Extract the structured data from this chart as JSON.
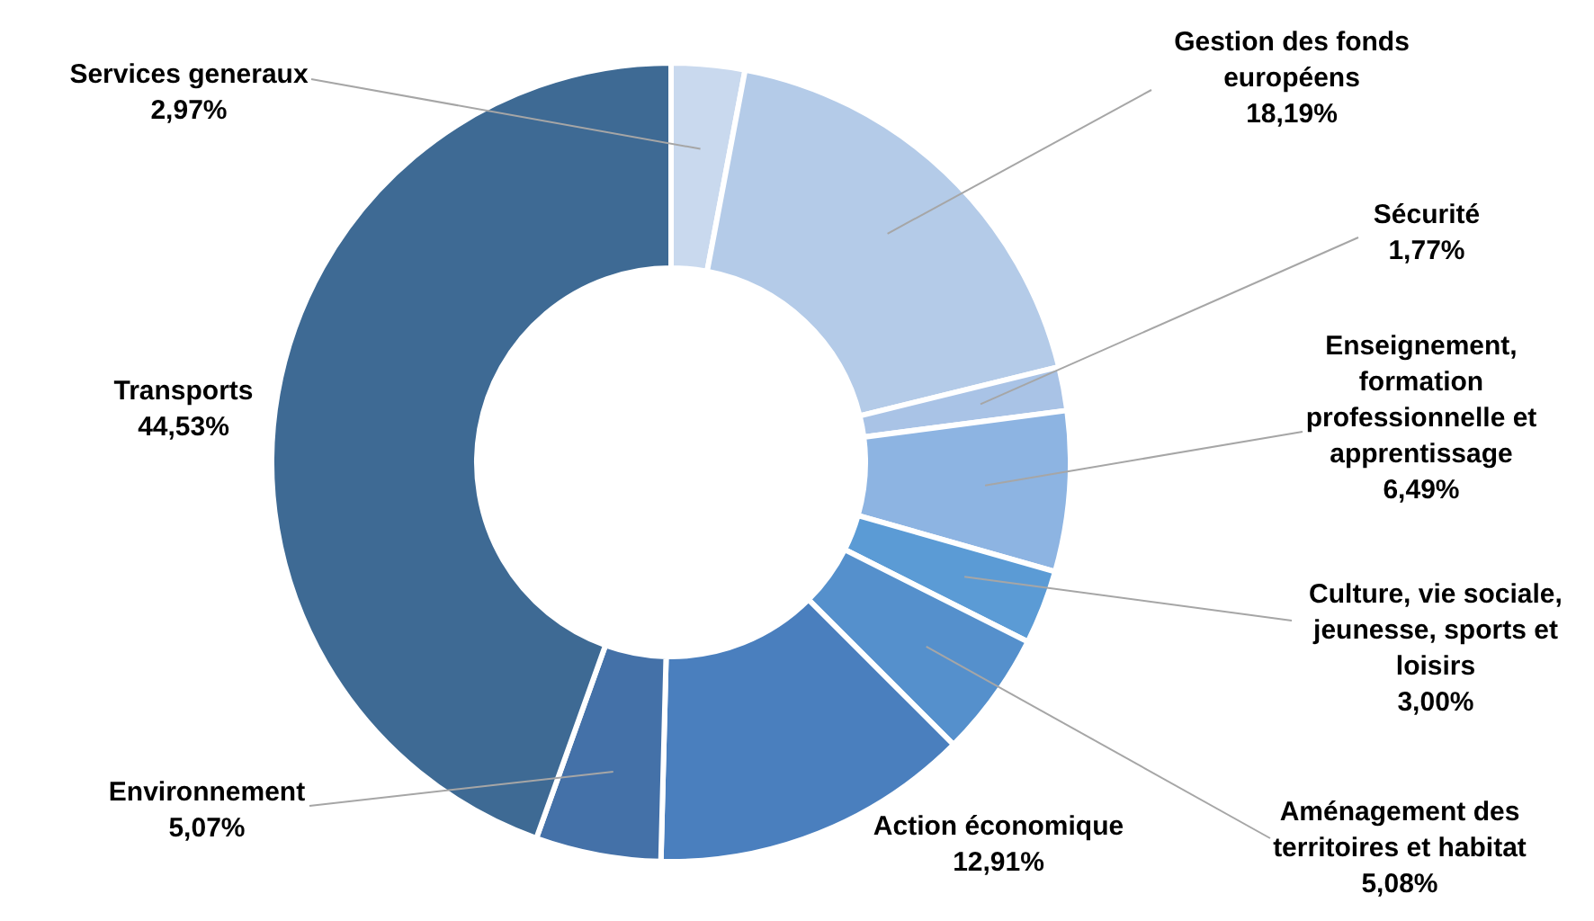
{
  "chart_data": {
    "type": "donut",
    "categories": [
      "Services generaux",
      "Gestion des fonds européens",
      "Sécurité",
      "Enseignement, formation professionnelle et apprentissage",
      "Culture, vie sociale, jeunesse, sports et loisirs",
      "Aménagement des territoires et habitat",
      "Action économique",
      "Environnement",
      "Transports"
    ],
    "values": [
      2.97,
      18.19,
      1.77,
      6.49,
      3.0,
      5.08,
      12.91,
      5.07,
      44.53
    ],
    "value_labels": [
      "2,97%",
      "18,19%",
      "1,77%",
      "6,49%",
      "3,00%",
      "5,08%",
      "12,91%",
      "5,07%",
      "44,53%"
    ],
    "colors": [
      "#c9d9ee",
      "#b4cbe8",
      "#a9c3e6",
      "#8db4e2",
      "#5b9bd5",
      "#5590cc",
      "#4a7fbe",
      "#4471a8",
      "#3e6a94"
    ]
  }
}
